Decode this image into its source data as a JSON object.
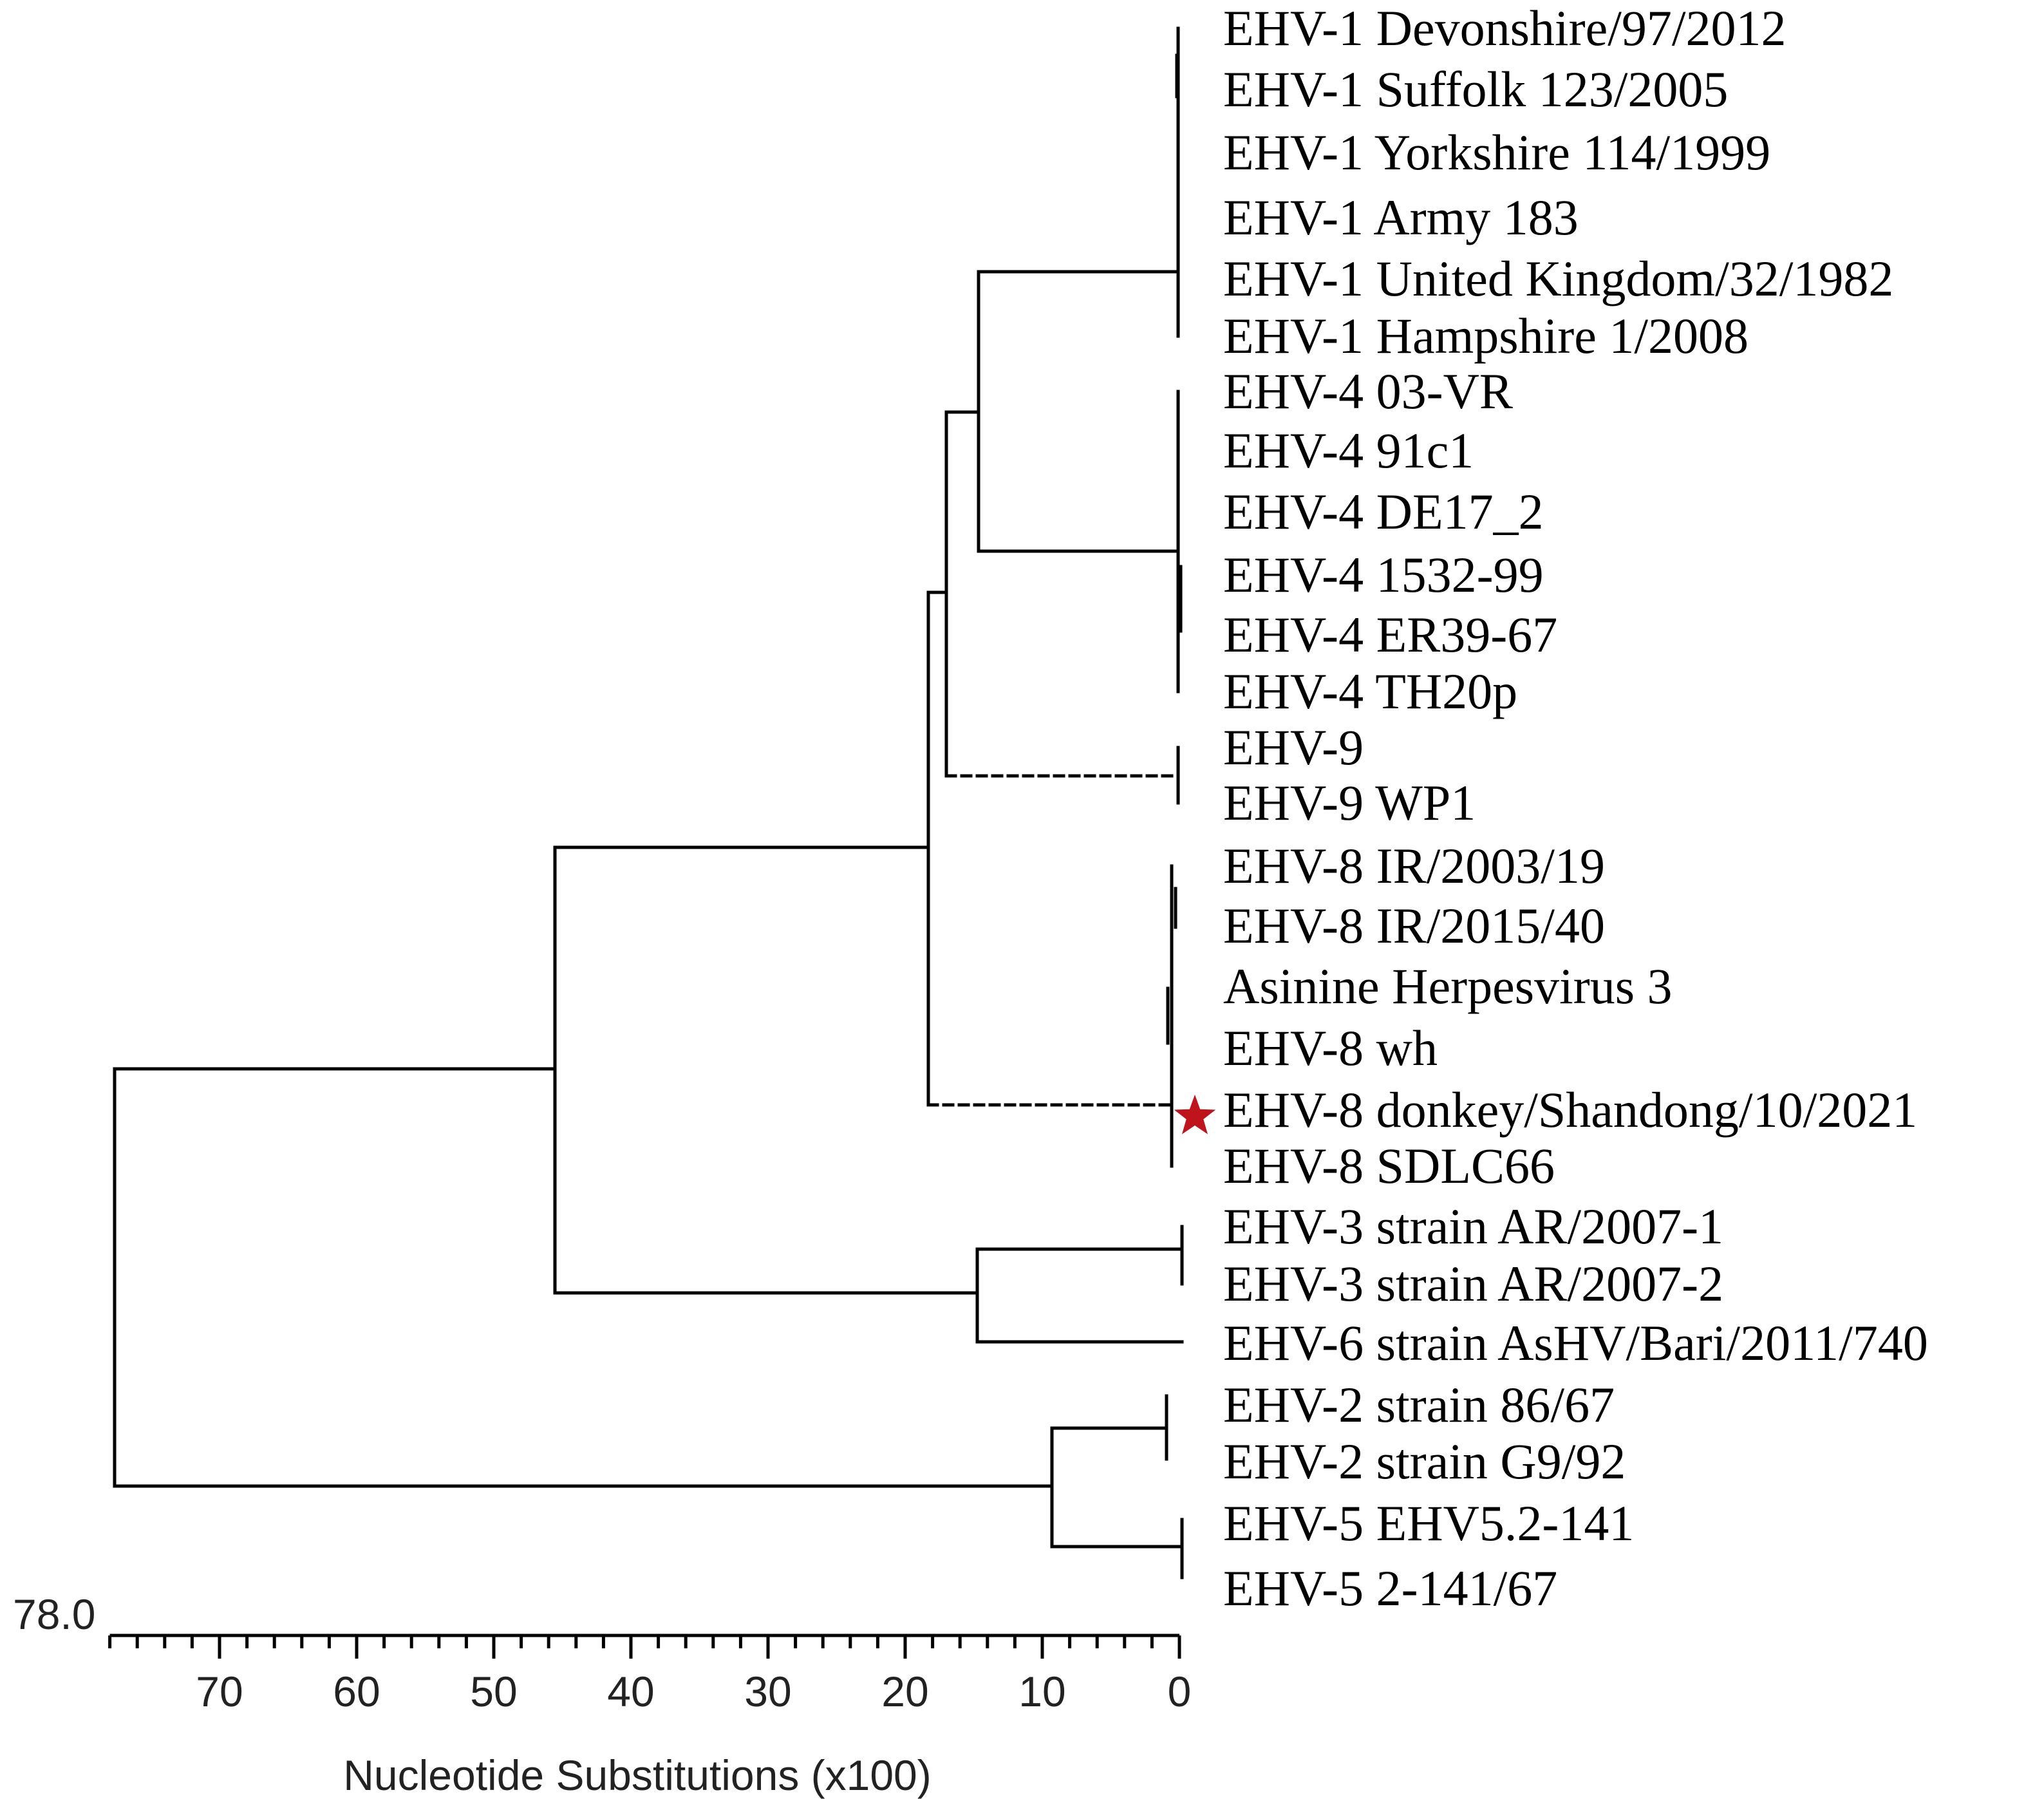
{
  "tree": {
    "scale_max_label": "78.0",
    "x_axis": {
      "title": "Nucleotide Substitutions (x100)",
      "ticks": [
        70,
        60,
        50,
        40,
        30,
        20,
        10,
        0
      ],
      "range": [
        78,
        0
      ]
    },
    "highlight_color": "#c0141c",
    "highlight_icon": "star-icon",
    "leaves": [
      {
        "name": "EHV-1 Devonshire/97/2012"
      },
      {
        "name": "EHV-1 Suffolk 123/2005"
      },
      {
        "name": "EHV-1 Yorkshire 114/1999"
      },
      {
        "name": "EHV-1 Army 183"
      },
      {
        "name": "EHV-1 United Kingdom/32/1982"
      },
      {
        "name": "EHV-1 Hampshire 1/2008"
      },
      {
        "name": "EHV-4 03-VR"
      },
      {
        "name": "EHV-4 91c1"
      },
      {
        "name": "EHV-4 DE17_2"
      },
      {
        "name": "EHV-4 1532-99"
      },
      {
        "name": "EHV-4 ER39-67"
      },
      {
        "name": "EHV-4 TH20p"
      },
      {
        "name": "EHV-9"
      },
      {
        "name": "EHV-9 WP1"
      },
      {
        "name": "EHV-8 IR/2003/19"
      },
      {
        "name": "EHV-8 IR/2015/40"
      },
      {
        "name": "Asinine Herpesvirus 3"
      },
      {
        "name": "EHV-8 wh"
      },
      {
        "name": "EHV-8 donkey/Shandong/10/2021",
        "highlighted": true
      },
      {
        "name": "EHV-8 SDLC66"
      },
      {
        "name": "EHV-3 strain AR/2007-1"
      },
      {
        "name": "EHV-3 strain AR/2007-2"
      },
      {
        "name": "EHV-6 strain AsHV/Bari/2011/740"
      },
      {
        "name": "EHV-2 strain 86/67"
      },
      {
        "name": "EHV-2 strain G9/92"
      },
      {
        "name": "EHV-5 EHV5.2-141"
      },
      {
        "name": "EHV-5 2-141/67"
      }
    ]
  }
}
